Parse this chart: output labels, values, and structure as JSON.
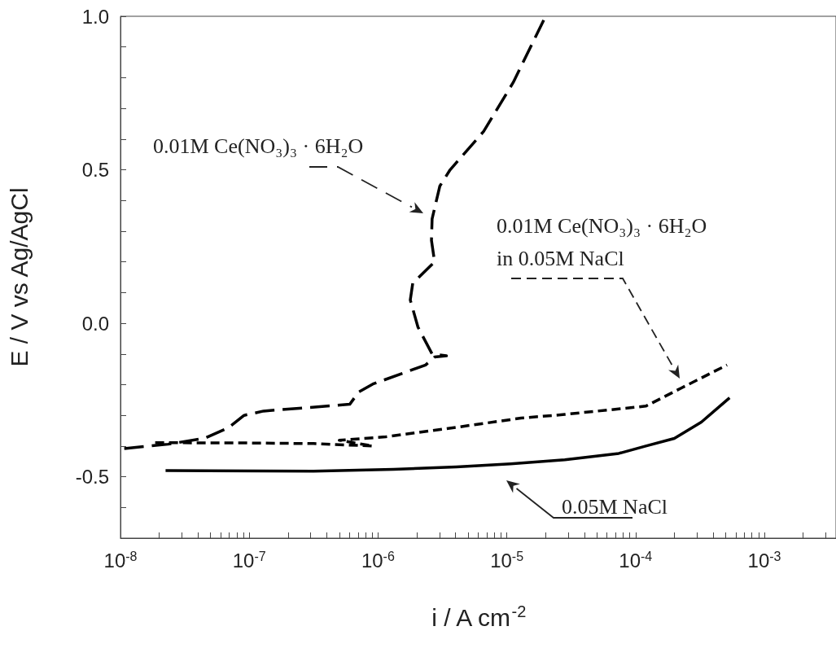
{
  "chart_data": {
    "type": "line",
    "xlabel": "i / A cm$^{-2}$",
    "ylabel": "E / V vs Ag/AgCl",
    "log": "x",
    "marker": "none",
    "grid": false,
    "xlim": [
      1e-08,
      0.0036
    ],
    "ylim": [
      -0.7,
      1.0
    ],
    "xticks": [
      {
        "value": 1e-08,
        "label": "10$^{-8}$"
      },
      {
        "value": 2e-08,
        "label": null
      },
      {
        "value": 3e-08,
        "label": null
      },
      {
        "value": 4e-08,
        "label": null
      },
      {
        "value": 5e-08,
        "label": null
      },
      {
        "value": 6e-08,
        "label": null
      },
      {
        "value": 7e-08,
        "label": null
      },
      {
        "value": 8e-08,
        "label": null
      },
      {
        "value": 9e-08,
        "label": null
      },
      {
        "value": 1e-07,
        "label": "10$^{-7}$"
      },
      {
        "value": 2e-07,
        "label": null
      },
      {
        "value": 3e-07,
        "label": null
      },
      {
        "value": 4e-07,
        "label": null
      },
      {
        "value": 5e-07,
        "label": null
      },
      {
        "value": 6e-07,
        "label": null
      },
      {
        "value": 7e-07,
        "label": null
      },
      {
        "value": 8e-07,
        "label": null
      },
      {
        "value": 9e-07,
        "label": null
      },
      {
        "value": 1e-06,
        "label": "10$^{-6}$"
      },
      {
        "value": 2e-06,
        "label": null
      },
      {
        "value": 3e-06,
        "label": null
      },
      {
        "value": 4e-06,
        "label": null
      },
      {
        "value": 5e-06,
        "label": null
      },
      {
        "value": 6e-06,
        "label": null
      },
      {
        "value": 7e-06,
        "label": null
      },
      {
        "value": 8e-06,
        "label": null
      },
      {
        "value": 9e-06,
        "label": null
      },
      {
        "value": 1e-05,
        "label": "10$^{-5}$"
      },
      {
        "value": 2e-05,
        "label": null
      },
      {
        "value": 3e-05,
        "label": null
      },
      {
        "value": 4e-05,
        "label": null
      },
      {
        "value": 5e-05,
        "label": null
      },
      {
        "value": 6e-05,
        "label": null
      },
      {
        "value": 7e-05,
        "label": null
      },
      {
        "value": 8e-05,
        "label": null
      },
      {
        "value": 9e-05,
        "label": null
      },
      {
        "value": 0.0001,
        "label": "10$^{-4}$"
      },
      {
        "value": 0.0002,
        "label": null
      },
      {
        "value": 0.0003,
        "label": null
      },
      {
        "value": 0.0004,
        "label": null
      },
      {
        "value": 0.0005,
        "label": null
      },
      {
        "value": 0.0006,
        "label": null
      },
      {
        "value": 0.0007,
        "label": null
      },
      {
        "value": 0.0008,
        "label": null
      },
      {
        "value": 0.0009,
        "label": null
      },
      {
        "value": 0.001,
        "label": "10$^{-3}$"
      },
      {
        "value": 0.002,
        "label": null
      },
      {
        "value": 0.003,
        "label": null
      }
    ],
    "yticks": [
      {
        "value": -0.7,
        "label": null
      },
      {
        "value": -0.6,
        "label": null
      },
      {
        "value": -0.5,
        "label": "-0.5"
      },
      {
        "value": -0.4,
        "label": null
      },
      {
        "value": -0.3,
        "label": null
      },
      {
        "value": -0.2,
        "label": null
      },
      {
        "value": -0.1,
        "label": null
      },
      {
        "value": 0,
        "label": "0.0"
      },
      {
        "value": 0.1,
        "label": null
      },
      {
        "value": 0.2,
        "label": null
      },
      {
        "value": 0.3,
        "label": null
      },
      {
        "value": 0.4,
        "label": null
      },
      {
        "value": 0.5,
        "label": "0.5"
      },
      {
        "value": 0.6,
        "label": null
      },
      {
        "value": 0.7,
        "label": null
      },
      {
        "value": 0.8,
        "label": null
      },
      {
        "value": 0.9,
        "label": null
      },
      {
        "value": 1.0,
        "label": "1.0"
      }
    ],
    "series": [
      {
        "color": "#000000",
        "line_style": "solid",
        "x": [
          2.24e-08,
          3.16e-07,
          1.32e-06,
          4.07e-06,
          1.07e-05,
          2.82e-05,
          7.41e-05,
          0.00012,
          0.0002,
          0.000324,
          0.000537
        ],
        "values": [
          -0.48,
          -0.482,
          -0.476,
          -0.468,
          -0.458,
          -0.445,
          -0.424,
          -0.4,
          -0.375,
          -0.322,
          -0.243
        ]
      },
      {
        "color": "#000000",
        "line_style": "dashed",
        "x": [
          1.07e-08,
          2.34e-08,
          4.47e-08,
          6.92e-08,
          9.12e-08,
          1.29e-07,
          6.03e-07,
          7.08e-07,
          9.12e-07,
          2.34e-06,
          2.75e-06,
          3.4e-06,
          2.63e-06,
          2.04e-06,
          1.78e-06,
          1.86e-06,
          2.75e-06,
          2.6e-06,
          2.63e-06,
          3.02e-06,
          3.63e-06,
          6.61e-06,
          1.12e-05,
          2e-05
        ],
        "values": [
          -0.408,
          -0.394,
          -0.375,
          -0.34,
          -0.3,
          -0.286,
          -0.264,
          -0.224,
          -0.198,
          -0.136,
          -0.11,
          -0.106,
          -0.1,
          -0.012,
          0.076,
          0.13,
          0.2,
          0.27,
          0.34,
          0.447,
          0.5,
          0.625,
          0.784,
          1.0
        ]
      },
      {
        "color": "#000000",
        "line_style": "dashed",
        "x": [
          1.86e-08,
          1e-07,
          3.16e-07,
          9.1e-07,
          5e-07,
          1.15e-06,
          3.9e-06,
          1.29e-05,
          2.82e-05,
          0.00012,
          0.000229,
          0.000513
        ],
        "values": [
          -0.389,
          -0.39,
          -0.392,
          -0.4,
          -0.381,
          -0.37,
          -0.34,
          -0.309,
          -0.297,
          -0.27,
          -0.21,
          -0.136
        ]
      }
    ],
    "annotations": [
      "0.01M Ce(NO₃)₃ · 6H₂O",
      "0.01M Ce(NO₃)₃ · 6H₂O\nin 0.05M NaCl",
      "0.05M NaCl"
    ]
  }
}
